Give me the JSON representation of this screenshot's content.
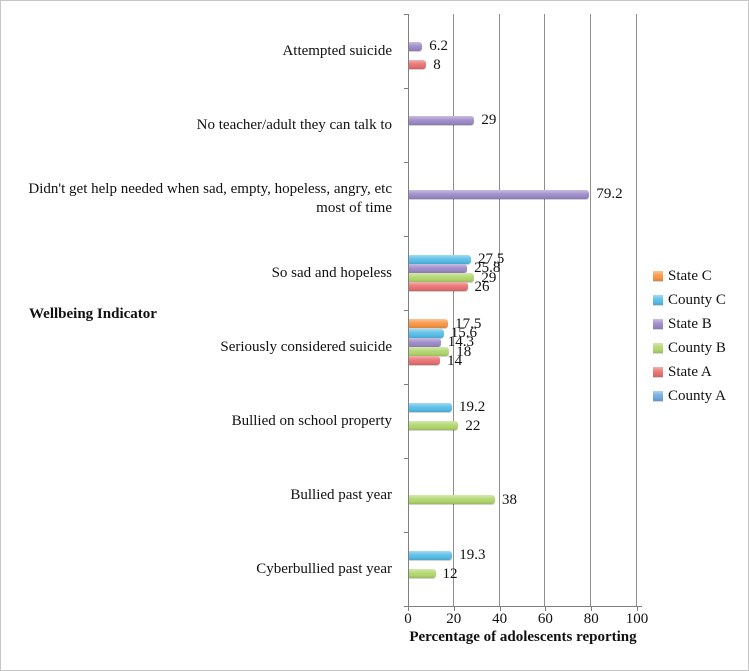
{
  "chart_data": {
    "type": "bar",
    "orientation": "horizontal",
    "xlabel": "Percentage of adolescents reporting",
    "ylabel": "Wellbeing Indicator",
    "xlim": [
      0,
      100
    ],
    "xticks": [
      0,
      20,
      40,
      60,
      80,
      100
    ],
    "grid": "vertical-major",
    "legend_position": "right",
    "series_order_top_to_bottom": [
      "State C",
      "County C",
      "State B",
      "County B",
      "State A",
      "County A"
    ],
    "legend": [
      {
        "name": "State C",
        "color": "#F79443"
      },
      {
        "name": "County C",
        "color": "#55BCE6"
      },
      {
        "name": "State B",
        "color": "#9B89C6"
      },
      {
        "name": "County B",
        "color": "#AFD56C"
      },
      {
        "name": "State A",
        "color": "#E87070"
      },
      {
        "name": "County A",
        "color": "#6FA8DC"
      }
    ],
    "categories": [
      {
        "label": "Attempted suicide",
        "bars": [
          {
            "series": "State B",
            "value": 6.2
          },
          {
            "series": "State A",
            "value": 8
          }
        ]
      },
      {
        "label": "No teacher/adult they can talk to",
        "bars": [
          {
            "series": "State B",
            "value": 29
          }
        ]
      },
      {
        "label": "Didn't get help needed when sad, empty, hopeless, angry, etc most of time",
        "bars": [
          {
            "series": "State B",
            "value": 79.2
          }
        ]
      },
      {
        "label": "So sad and hopeless",
        "bars": [
          {
            "series": "County C",
            "value": 27.5
          },
          {
            "series": "State B",
            "value": 25.8
          },
          {
            "series": "County B",
            "value": 29
          },
          {
            "series": "State A",
            "value": 26
          }
        ]
      },
      {
        "label": "Seriously considered suicide",
        "bars": [
          {
            "series": "State C",
            "value": 17.5
          },
          {
            "series": "County C",
            "value": 15.6
          },
          {
            "series": "State B",
            "value": 14.3
          },
          {
            "series": "County B",
            "value": 18
          },
          {
            "series": "State A",
            "value": 14
          }
        ]
      },
      {
        "label": "Bullied on school property",
        "bars": [
          {
            "series": "County C",
            "value": 19.2
          },
          {
            "series": "County B",
            "value": 22
          }
        ]
      },
      {
        "label": "Bullied past year",
        "bars": [
          {
            "series": "County B",
            "value": 38
          }
        ]
      },
      {
        "label": "Cyberbullied past year",
        "bars": [
          {
            "series": "County C",
            "value": 19.3
          },
          {
            "series": "County B",
            "value": 12
          }
        ]
      }
    ]
  }
}
